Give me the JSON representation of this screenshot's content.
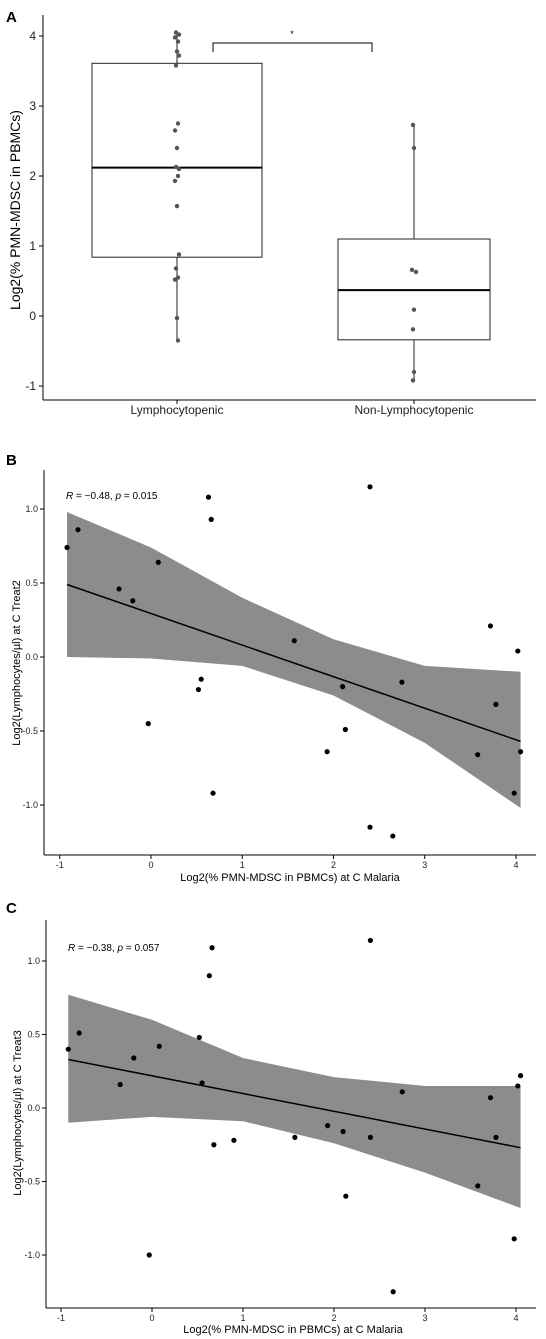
{
  "chart_data": [
    {
      "panel": "A",
      "type": "box",
      "xlabel": "",
      "ylabel": "Log2(% PMN-MDSC in PBMCs)",
      "ylim": [
        -1.2,
        4.3
      ],
      "yticks": [
        -1,
        0,
        1,
        2,
        3,
        4
      ],
      "categories": [
        "Lymphocytopenic",
        "Non-Lymphocytopenic"
      ],
      "boxes": [
        {
          "category": "Lymphocytopenic",
          "min": -0.35,
          "q1": 0.84,
          "median": 2.12,
          "q3": 3.61,
          "max": 4.05
        },
        {
          "category": "Non-Lymphocytopenic",
          "min": -0.92,
          "q1": -0.34,
          "median": 0.37,
          "q3": 1.1,
          "max": 2.73
        }
      ],
      "points": [
        {
          "category": "Lymphocytopenic",
          "values": [
            4.05,
            4.02,
            3.98,
            3.92,
            3.78,
            3.72,
            3.58,
            2.75,
            2.65,
            2.4,
            2.13,
            2.1,
            2.0,
            1.93,
            1.57,
            0.88,
            0.68,
            0.55,
            0.52,
            -0.03,
            -0.35
          ]
        },
        {
          "category": "Non-Lymphocytopenic",
          "values": [
            2.73,
            2.4,
            0.66,
            0.63,
            0.09,
            -0.19,
            -0.8,
            -0.92
          ]
        }
      ],
      "significance": {
        "from": "Lymphocytopenic",
        "to": "Non-Lymphocytopenic",
        "label": "*"
      }
    },
    {
      "panel": "B",
      "type": "scatter",
      "xlabel": "Log2(% PMN-MDSC in PBMCs) at C Malaria",
      "ylabel": "Log2(Lymphocytes/µl) at C Treat2",
      "xlim": [
        -1.15,
        4.3
      ],
      "ylim": [
        -1.35,
        1.25
      ],
      "xticks": [
        -1,
        0,
        1,
        2,
        3,
        4
      ],
      "yticks": [
        -1.0,
        -0.5,
        0.0,
        0.5,
        1.0
      ],
      "ytick_labels": [
        "-1.0",
        "-0.5",
        "0.0",
        "0.5",
        "1.0"
      ],
      "annotation": {
        "r_symbol": "R",
        "r_value": " = −0.48, ",
        "p_symbol": "p",
        "p_value": " = 0.015"
      },
      "points": [
        [
          -0.92,
          0.74
        ],
        [
          -0.8,
          0.86
        ],
        [
          -0.35,
          0.46
        ],
        [
          -0.2,
          0.38
        ],
        [
          -0.03,
          -0.45
        ],
        [
          0.08,
          0.64
        ],
        [
          0.52,
          -0.22
        ],
        [
          0.55,
          -0.15
        ],
        [
          0.63,
          1.08
        ],
        [
          0.66,
          0.93
        ],
        [
          0.68,
          -0.92
        ],
        [
          1.57,
          0.11
        ],
        [
          1.93,
          -0.64
        ],
        [
          2.1,
          -0.2
        ],
        [
          2.13,
          -0.49
        ],
        [
          2.4,
          1.15
        ],
        [
          2.4,
          -1.15
        ],
        [
          2.65,
          -1.21
        ],
        [
          2.75,
          -0.17
        ],
        [
          3.58,
          -0.66
        ],
        [
          3.72,
          0.21
        ],
        [
          3.78,
          -0.32
        ],
        [
          3.98,
          -0.92
        ],
        [
          4.02,
          0.04
        ],
        [
          4.05,
          -0.64
        ]
      ],
      "fit": {
        "x": [
          -0.92,
          4.05
        ],
        "y": [
          0.49,
          -0.57
        ]
      },
      "ci": {
        "x": [
          -0.92,
          0.0,
          1.0,
          2.0,
          3.0,
          4.05
        ],
        "lower": [
          0.0,
          -0.01,
          -0.06,
          -0.26,
          -0.58,
          -1.02
        ],
        "upper": [
          0.98,
          0.74,
          0.4,
          0.12,
          -0.06,
          -0.1
        ]
      }
    },
    {
      "panel": "C",
      "type": "scatter",
      "xlabel": "Log2(% PMN-MDSC in PBMCs) at C Malaria",
      "ylabel": "Log2(Lymphocytes/µl) at C Treat3",
      "xlim": [
        -1.15,
        4.3
      ],
      "ylim": [
        -1.3,
        1.25
      ],
      "xticks": [
        -1,
        0,
        1,
        2,
        3,
        4
      ],
      "yticks": [
        -1.0,
        -0.5,
        0.0,
        0.5,
        1.0
      ],
      "ytick_labels": [
        "-1.0",
        "-0.5",
        "0.0",
        "0.5",
        "1.0"
      ],
      "annotation": {
        "r_symbol": "R",
        "r_value": " = −0.38, ",
        "p_symbol": "p",
        "p_value": " = 0.057"
      },
      "points": [
        [
          -0.92,
          0.4
        ],
        [
          -0.8,
          0.51
        ],
        [
          -0.35,
          0.16
        ],
        [
          -0.2,
          0.34
        ],
        [
          -0.03,
          -1.0
        ],
        [
          0.08,
          0.42
        ],
        [
          0.52,
          0.48
        ],
        [
          0.55,
          0.17
        ],
        [
          0.63,
          0.9
        ],
        [
          0.66,
          1.09
        ],
        [
          0.68,
          -0.25
        ],
        [
          0.9,
          -0.22
        ],
        [
          1.57,
          -0.2
        ],
        [
          1.93,
          -0.12
        ],
        [
          2.1,
          -0.16
        ],
        [
          2.13,
          -0.6
        ],
        [
          2.4,
          1.14
        ],
        [
          2.4,
          -0.2
        ],
        [
          2.65,
          -1.25
        ],
        [
          2.75,
          0.11
        ],
        [
          3.58,
          -0.53
        ],
        [
          3.72,
          0.07
        ],
        [
          3.78,
          -0.2
        ],
        [
          3.98,
          -0.89
        ],
        [
          4.02,
          0.15
        ],
        [
          4.05,
          0.22
        ]
      ],
      "fit": {
        "x": [
          -0.92,
          4.05
        ],
        "y": [
          0.33,
          -0.27
        ]
      },
      "ci": {
        "x": [
          -0.92,
          0.0,
          1.0,
          2.0,
          3.0,
          4.05
        ],
        "lower": [
          -0.1,
          -0.06,
          -0.09,
          -0.24,
          -0.44,
          -0.68
        ],
        "upper": [
          0.77,
          0.6,
          0.34,
          0.21,
          0.15,
          0.15
        ]
      }
    }
  ],
  "colors": {
    "box_stroke": "#222222",
    "point": "#000000",
    "point_a": "#555555",
    "ci_fill": "#8c8c8c",
    "fit_line": "#000000"
  }
}
